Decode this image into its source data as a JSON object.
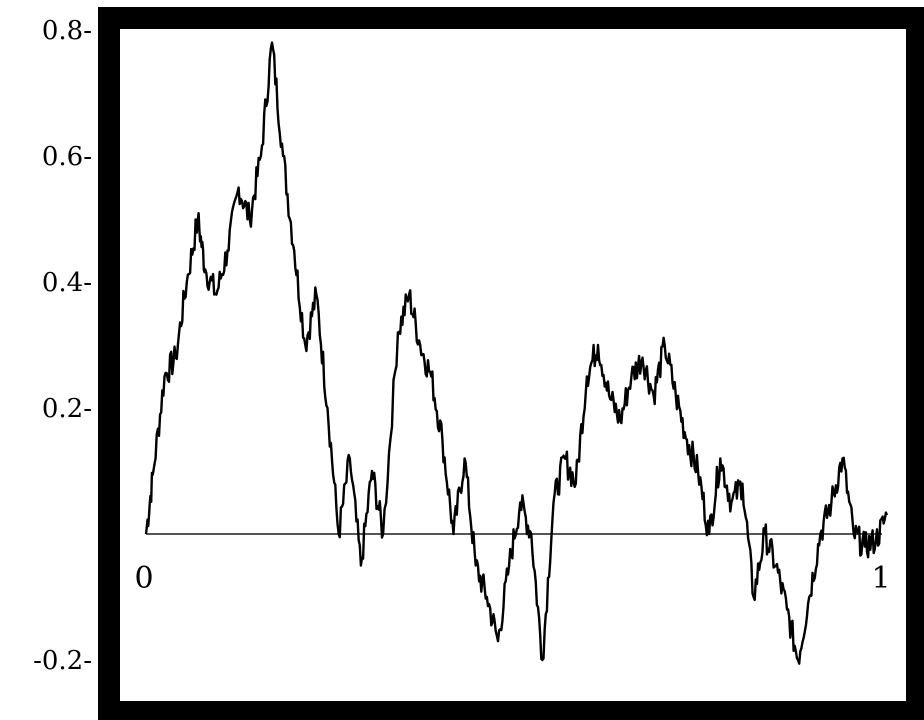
{
  "chart_data": {
    "type": "line",
    "title": "",
    "xlabel": "",
    "ylabel": "",
    "xlim": [
      0,
      1
    ],
    "ylim": [
      -0.25,
      0.83
    ],
    "grid": false,
    "legend": "none",
    "colors": {
      "frame": "#000000",
      "line": "#000000",
      "baseline": "#555555",
      "background": "#ffffff"
    },
    "y_ticks": [
      {
        "value": 0.8,
        "label": "0.8-"
      },
      {
        "value": 0.6,
        "label": "0.6-"
      },
      {
        "value": 0.4,
        "label": "0.4-"
      },
      {
        "value": 0.2,
        "label": "0.2-"
      },
      {
        "value": -0.2,
        "label": "-0.2-"
      }
    ],
    "x_ticks": [
      {
        "value": 0,
        "label": "0"
      },
      {
        "value": 1,
        "label": "1"
      }
    ],
    "baseline_y": 0,
    "series": [
      {
        "x": [
          0,
          0.01,
          0.025,
          0.04,
          0.055,
          0.07,
          0.08,
          0.095,
          0.11,
          0.125,
          0.14,
          0.155,
          0.17,
          0.185,
          0.2,
          0.215,
          0.23,
          0.245,
          0.26,
          0.275,
          0.29,
          0.305,
          0.32,
          0.34,
          0.355,
          0.37,
          0.385,
          0.4,
          0.415,
          0.43,
          0.445,
          0.46,
          0.475,
          0.49,
          0.505,
          0.52,
          0.535,
          0.55,
          0.565,
          0.58,
          0.595,
          0.61,
          0.625,
          0.64,
          0.655,
          0.67,
          0.685,
          0.7,
          0.715,
          0.73,
          0.745,
          0.76,
          0.775,
          0.79,
          0.805,
          0.82,
          0.835,
          0.85,
          0.865,
          0.88,
          0.895,
          0.91,
          0.925,
          0.94,
          0.955,
          0.97,
          0.985,
          1.0
        ],
        "y": [
          0.0,
          0.1,
          0.25,
          0.28,
          0.4,
          0.5,
          0.42,
          0.38,
          0.45,
          0.55,
          0.5,
          0.6,
          0.78,
          0.6,
          0.45,
          0.3,
          0.38,
          0.2,
          0.0,
          0.12,
          -0.05,
          0.1,
          0.0,
          0.32,
          0.38,
          0.3,
          0.25,
          0.15,
          0.0,
          0.12,
          -0.05,
          -0.1,
          -0.17,
          -0.05,
          0.05,
          0.0,
          -0.2,
          0.05,
          0.12,
          0.08,
          0.25,
          0.3,
          0.22,
          0.18,
          0.25,
          0.28,
          0.22,
          0.3,
          0.22,
          0.15,
          0.1,
          0.0,
          0.12,
          0.05,
          0.08,
          -0.1,
          0.0,
          -0.05,
          -0.12,
          -0.2,
          -0.1,
          0.0,
          0.05,
          0.12,
          0.0,
          -0.02,
          -0.01,
          0.03
        ]
      }
    ]
  }
}
